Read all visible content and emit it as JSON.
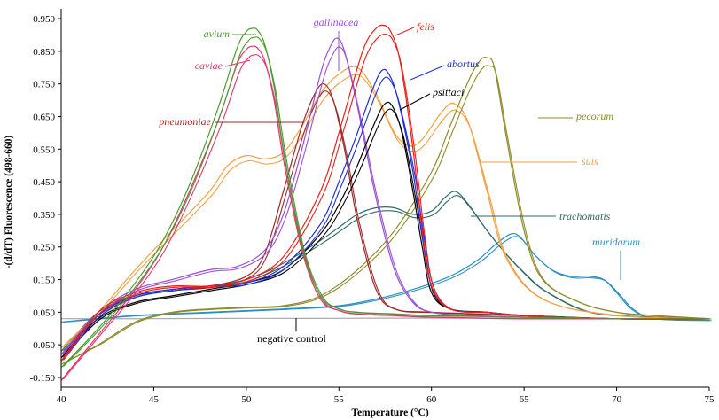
{
  "chart_data": {
    "type": "line",
    "xlabel": "Temperature (°C)",
    "ylabel": "-(d/dT) Fluorescence (498-660)",
    "xlim": [
      40,
      75
    ],
    "ylim": [
      -0.18,
      0.98
    ],
    "x_ticks": [
      "40",
      "45",
      "50",
      "55",
      "60",
      "65",
      "70",
      "75"
    ],
    "y_ticks": [
      "-0.150",
      "-0.050",
      "0.050",
      "0.150",
      "0.250",
      "0.350",
      "0.450",
      "0.550",
      "0.650",
      "0.750",
      "0.850",
      "0.950"
    ],
    "grid": false,
    "series": [
      {
        "name": "avium",
        "color": "#4a9b2f",
        "label_italic": true,
        "x": [
          40,
          42,
          44,
          45.5,
          47,
          48.5,
          49.5,
          50,
          50.3,
          50.6,
          51,
          51.5,
          52,
          53,
          54,
          55,
          56,
          58,
          60,
          65,
          70,
          75
        ],
        "y": [
          -0.12,
          0.0,
          0.14,
          0.27,
          0.45,
          0.68,
          0.86,
          0.91,
          0.92,
          0.915,
          0.87,
          0.74,
          0.55,
          0.25,
          0.1,
          0.06,
          0.05,
          0.045,
          0.04,
          0.035,
          0.03,
          0.03
        ]
      },
      {
        "name": "caviae",
        "color": "#e0356f",
        "label_italic": true,
        "x": [
          40,
          42,
          44,
          45.5,
          47,
          48.5,
          49.5,
          50,
          50.3,
          50.6,
          51,
          51.5,
          52,
          53,
          54,
          55,
          56,
          58,
          60,
          65,
          70,
          75
        ],
        "y": [
          -0.16,
          -0.02,
          0.12,
          0.25,
          0.43,
          0.64,
          0.81,
          0.855,
          0.865,
          0.86,
          0.82,
          0.7,
          0.52,
          0.24,
          0.09,
          0.055,
          0.045,
          0.04,
          0.035,
          0.03,
          0.03,
          0.03
        ]
      },
      {
        "name": "gallinacea",
        "color": "#9b4fd6",
        "label_italic": true,
        "x": [
          40,
          42,
          44,
          46,
          48,
          49.5,
          51,
          52,
          53,
          54,
          54.5,
          54.9,
          55.3,
          56,
          57,
          58,
          59,
          60,
          62,
          65,
          70,
          75
        ],
        "y": [
          -0.08,
          0.05,
          0.12,
          0.15,
          0.18,
          0.19,
          0.24,
          0.35,
          0.55,
          0.78,
          0.86,
          0.89,
          0.85,
          0.68,
          0.4,
          0.18,
          0.08,
          0.05,
          0.04,
          0.035,
          0.03,
          0.03
        ]
      },
      {
        "name": "felis",
        "color": "#e8201b",
        "label_italic": true,
        "x": [
          40,
          42,
          44,
          46,
          48,
          50,
          52,
          54,
          55,
          56,
          56.5,
          57,
          57.4,
          57.8,
          58.3,
          59,
          59.5,
          60,
          61,
          63,
          65,
          70,
          75
        ],
        "y": [
          -0.1,
          0.05,
          0.11,
          0.13,
          0.13,
          0.15,
          0.22,
          0.42,
          0.6,
          0.8,
          0.88,
          0.92,
          0.93,
          0.91,
          0.82,
          0.55,
          0.3,
          0.13,
          0.06,
          0.05,
          0.04,
          0.03,
          0.03
        ]
      },
      {
        "name": "abortus",
        "color": "#1f2fd6",
        "label_italic": true,
        "x": [
          40,
          42,
          44,
          46,
          48,
          50,
          52,
          54,
          55,
          56,
          56.8,
          57.3,
          57.7,
          58.2,
          59,
          59.5,
          60,
          61,
          63,
          65,
          70,
          75
        ],
        "y": [
          -0.1,
          0.04,
          0.1,
          0.12,
          0.13,
          0.14,
          0.19,
          0.32,
          0.45,
          0.6,
          0.73,
          0.79,
          0.78,
          0.7,
          0.48,
          0.28,
          0.13,
          0.06,
          0.05,
          0.04,
          0.03,
          0.03
        ]
      },
      {
        "name": "psittaci",
        "color": "#000000",
        "label_italic": true,
        "x": [
          40,
          42,
          44,
          46,
          48,
          50,
          52,
          54,
          55,
          56,
          57,
          57.5,
          57.9,
          58.4,
          59,
          59.5,
          60,
          61,
          63,
          65,
          70,
          75
        ],
        "y": [
          -0.09,
          0.03,
          0.08,
          0.1,
          0.12,
          0.14,
          0.18,
          0.29,
          0.38,
          0.5,
          0.64,
          0.69,
          0.68,
          0.6,
          0.42,
          0.25,
          0.11,
          0.06,
          0.05,
          0.04,
          0.03,
          0.03
        ]
      },
      {
        "name": "pneumoniae",
        "color": "#9a2a2a",
        "label_italic": true,
        "x": [
          40,
          42,
          44,
          46,
          48,
          50,
          51,
          52,
          53,
          53.7,
          54.2,
          54.7,
          55.3,
          56,
          57,
          58,
          60,
          65,
          70,
          75
        ],
        "y": [
          -0.08,
          0.04,
          0.1,
          0.12,
          0.13,
          0.16,
          0.23,
          0.42,
          0.62,
          0.72,
          0.75,
          0.7,
          0.55,
          0.33,
          0.12,
          0.06,
          0.05,
          0.04,
          0.03,
          0.03
        ]
      },
      {
        "name": "pecorum",
        "color": "#8f8b2c",
        "label_italic": true,
        "x": [
          40,
          42,
          44,
          46,
          48,
          50,
          52,
          54,
          56,
          58,
          60,
          61,
          62,
          62.6,
          63,
          63.4,
          64,
          65,
          66,
          68,
          70,
          72,
          75
        ],
        "y": [
          -0.11,
          -0.05,
          0.02,
          0.05,
          0.06,
          0.065,
          0.07,
          0.1,
          0.18,
          0.3,
          0.48,
          0.62,
          0.76,
          0.82,
          0.83,
          0.8,
          0.6,
          0.3,
          0.15,
          0.08,
          0.05,
          0.04,
          0.03
        ]
      },
      {
        "name": "suis",
        "color": "#f5a041",
        "label_italic": true,
        "x": [
          40,
          42,
          44,
          46,
          48,
          49,
          50,
          51,
          52,
          53,
          54,
          55,
          56,
          57,
          58,
          58.8,
          59.5,
          60.5,
          61.2,
          62,
          63,
          64,
          66,
          70,
          75
        ],
        "y": [
          -0.06,
          0.05,
          0.18,
          0.3,
          0.42,
          0.5,
          0.53,
          0.52,
          0.54,
          0.62,
          0.72,
          0.78,
          0.8,
          0.72,
          0.6,
          0.56,
          0.58,
          0.66,
          0.69,
          0.63,
          0.42,
          0.22,
          0.09,
          0.04,
          0.03
        ]
      },
      {
        "name": "trachomatis",
        "color": "#2e6b66",
        "label_italic": true,
        "x": [
          40,
          42,
          44,
          46,
          48,
          50,
          52,
          54,
          55,
          56,
          57,
          58,
          59,
          60,
          60.7,
          61.3,
          62,
          63,
          64,
          65,
          66,
          68,
          70,
          75
        ],
        "y": [
          -0.07,
          0.05,
          0.1,
          0.12,
          0.13,
          0.15,
          0.2,
          0.27,
          0.31,
          0.35,
          0.37,
          0.37,
          0.35,
          0.36,
          0.4,
          0.42,
          0.38,
          0.3,
          0.23,
          0.17,
          0.12,
          0.06,
          0.04,
          0.03
        ]
      },
      {
        "name": "muridarum",
        "color": "#2b8fc0",
        "label_italic": true,
        "x": [
          40,
          44,
          48,
          52,
          55,
          57,
          59,
          61,
          62.5,
          63.5,
          64.3,
          64.8,
          65.5,
          66.5,
          67.5,
          68.5,
          69.3,
          70,
          70.8,
          72,
          75
        ],
        "y": [
          0.02,
          0.04,
          0.05,
          0.06,
          0.07,
          0.09,
          0.12,
          0.16,
          0.21,
          0.26,
          0.29,
          0.28,
          0.23,
          0.18,
          0.16,
          0.16,
          0.15,
          0.11,
          0.06,
          0.03,
          0.025
        ]
      },
      {
        "name": "negative control",
        "color": "#a7a7a7",
        "label_italic": false,
        "x": [
          40,
          45,
          50,
          55,
          60,
          65,
          70,
          75
        ],
        "y": [
          0.03,
          0.03,
          0.031,
          0.031,
          0.032,
          0.031,
          0.03,
          0.03
        ]
      }
    ],
    "labels": [
      {
        "series": "avium",
        "text": "avium",
        "style": "italic",
        "color": "#4a9b2f"
      },
      {
        "series": "caviae",
        "text": "caviae",
        "style": "italic",
        "color": "#e0356f"
      },
      {
        "series": "gallinacea",
        "text": "gallinacea",
        "style": "italic",
        "color": "#9b4fd6"
      },
      {
        "series": "felis",
        "text": "felis",
        "style": "italic",
        "color": "#e8201b"
      },
      {
        "series": "abortus",
        "text": "abortus",
        "style": "italic",
        "color": "#1f2fd6"
      },
      {
        "series": "psittaci",
        "text": "psittaci",
        "style": "italic",
        "color": "#000000"
      },
      {
        "series": "pneumoniae",
        "text": "pneumoniae",
        "style": "italic",
        "color": "#9a2a2a"
      },
      {
        "series": "pecorum",
        "text": "pecorum",
        "style": "italic",
        "color": "#8f8b2c"
      },
      {
        "series": "suis",
        "text": "suis",
        "style": "italic",
        "color": "#f5a041"
      },
      {
        "series": "trachomatis",
        "text": "trachomatis",
        "style": "italic",
        "color": "#2e6b66"
      },
      {
        "series": "muridarum",
        "text": "muridarum",
        "style": "italic",
        "color": "#2b8fc0"
      },
      {
        "series": "negative control",
        "text": "negative control",
        "style": "normal",
        "color": "#000000"
      }
    ]
  }
}
